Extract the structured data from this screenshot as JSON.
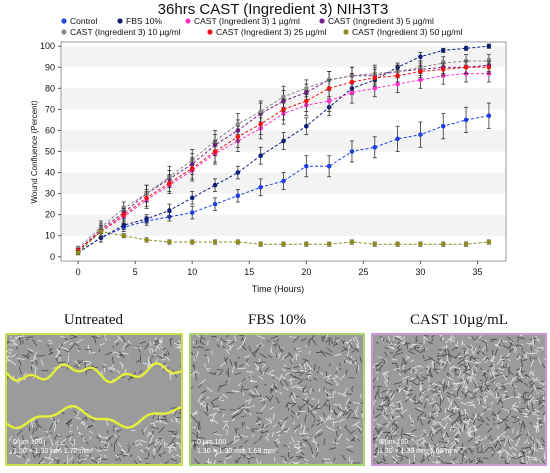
{
  "chart_data": {
    "type": "line",
    "title": "36hrs CAST (Ingredient 3) NIH3T3",
    "xlabel": "Time (Hours)",
    "ylabel": "Wound Confluence (Percent)",
    "xlim": [
      -1.5,
      37.5
    ],
    "ylim": [
      -2,
      102
    ],
    "xticks": [
      0,
      5,
      10,
      15,
      20,
      25,
      30,
      35
    ],
    "yticks": [
      0,
      10,
      20,
      30,
      40,
      50,
      60,
      70,
      80,
      90,
      100
    ],
    "grid": "horizontal bands",
    "legend_position": "top",
    "x": [
      0,
      2,
      4,
      6,
      8,
      10,
      12,
      14,
      16,
      18,
      20,
      22,
      24,
      26,
      28,
      30,
      32,
      34,
      36
    ],
    "series": [
      {
        "name": "Control",
        "color": "#1f3fe0",
        "marker": "circle",
        "values": [
          2,
          9,
          14,
          17,
          19,
          21,
          25,
          29,
          33,
          36,
          43,
          43,
          50,
          52,
          56,
          58,
          62,
          65,
          67
        ],
        "errors": [
          1,
          2,
          2,
          2,
          2,
          3,
          3,
          3,
          4,
          4,
          5,
          5,
          5,
          5,
          6,
          6,
          6,
          6,
          6
        ]
      },
      {
        "name": "FBS 10%",
        "color": "#0b1f7a",
        "marker": "circle",
        "values": [
          2,
          9,
          15,
          18,
          22,
          28,
          34,
          40,
          48,
          55,
          62,
          71,
          80,
          84,
          90,
          95,
          98,
          99,
          100
        ],
        "errors": [
          1,
          2,
          2,
          2,
          3,
          3,
          3,
          3,
          4,
          4,
          4,
          4,
          3,
          3,
          2,
          2,
          1,
          1,
          1
        ]
      },
      {
        "name": "CAST (Ingredient 3) 1 µg/ml",
        "color": "#ff33cc",
        "marker": "circle",
        "values": [
          3,
          12,
          19,
          27,
          34,
          41,
          49,
          55,
          61,
          68,
          72,
          74,
          78,
          80,
          82,
          84,
          86,
          87,
          87
        ],
        "errors": [
          1,
          3,
          3,
          4,
          4,
          5,
          5,
          5,
          5,
          5,
          5,
          5,
          5,
          4,
          4,
          4,
          4,
          4,
          4
        ]
      },
      {
        "name": "CAST (Ingredient 3) 5 µg/ml",
        "color": "#7a1f8c",
        "marker": "circle",
        "values": [
          3,
          13,
          21,
          30,
          37,
          44,
          53,
          60,
          68,
          74,
          78,
          84,
          86,
          86,
          88,
          89,
          90,
          90,
          91
        ],
        "errors": [
          1,
          3,
          3,
          4,
          4,
          5,
          5,
          5,
          5,
          5,
          4,
          4,
          4,
          4,
          3,
          3,
          3,
          3,
          3
        ]
      },
      {
        "name": "CAST (Ingredient 3) 10 µg/ml",
        "color": "#8a8a8a",
        "marker": "circle",
        "values": [
          4,
          14,
          23,
          30,
          38,
          46,
          55,
          63,
          69,
          76,
          80,
          84,
          86,
          87,
          88,
          90,
          92,
          93,
          93
        ],
        "errors": [
          1,
          3,
          3,
          4,
          5,
          5,
          5,
          5,
          5,
          5,
          4,
          4,
          4,
          4,
          3,
          3,
          3,
          3,
          3
        ]
      },
      {
        "name": "CAST (Ingredient 3) 25 µg/ml",
        "color": "#ee1111",
        "marker": "circle",
        "values": [
          3,
          12,
          20,
          28,
          35,
          42,
          50,
          57,
          63,
          70,
          74,
          80,
          83,
          85,
          86,
          88,
          89,
          90,
          90
        ],
        "errors": [
          1,
          3,
          3,
          4,
          4,
          5,
          5,
          5,
          5,
          5,
          5,
          4,
          4,
          4,
          3,
          3,
          3,
          3,
          3
        ]
      },
      {
        "name": "CAST (Ingredient 3) 50 µg/ml",
        "color": "#8b8b1f",
        "marker": "circle",
        "values": [
          2,
          12,
          10,
          8,
          7,
          7,
          7,
          7,
          6,
          6,
          6,
          6,
          7,
          6,
          6,
          6,
          6,
          6,
          7
        ],
        "errors": [
          1,
          1,
          1,
          1,
          1,
          1,
          1,
          1,
          1,
          1,
          1,
          1,
          1,
          1,
          1,
          1,
          1,
          1,
          1
        ]
      }
    ]
  },
  "panels": [
    {
      "label": "Untreated",
      "border_color": "#cde04a",
      "scale_line1": "0    µm    100",
      "scale_line2": "1.30 × 1.30 mm  1.70 mm²"
    },
    {
      "label": "FBS 10%",
      "border_color": "#a8d86a",
      "scale_line1": "0    µm    100",
      "scale_line2": "1.30 × 1.30 mm  1.69 mm²"
    },
    {
      "label": "CAST 10µg/mL",
      "border_color": "#c79ad6",
      "scale_line1": "0    µm    100",
      "scale_line2": "1.30 × 1.30 mm  1.69 mm²"
    }
  ]
}
